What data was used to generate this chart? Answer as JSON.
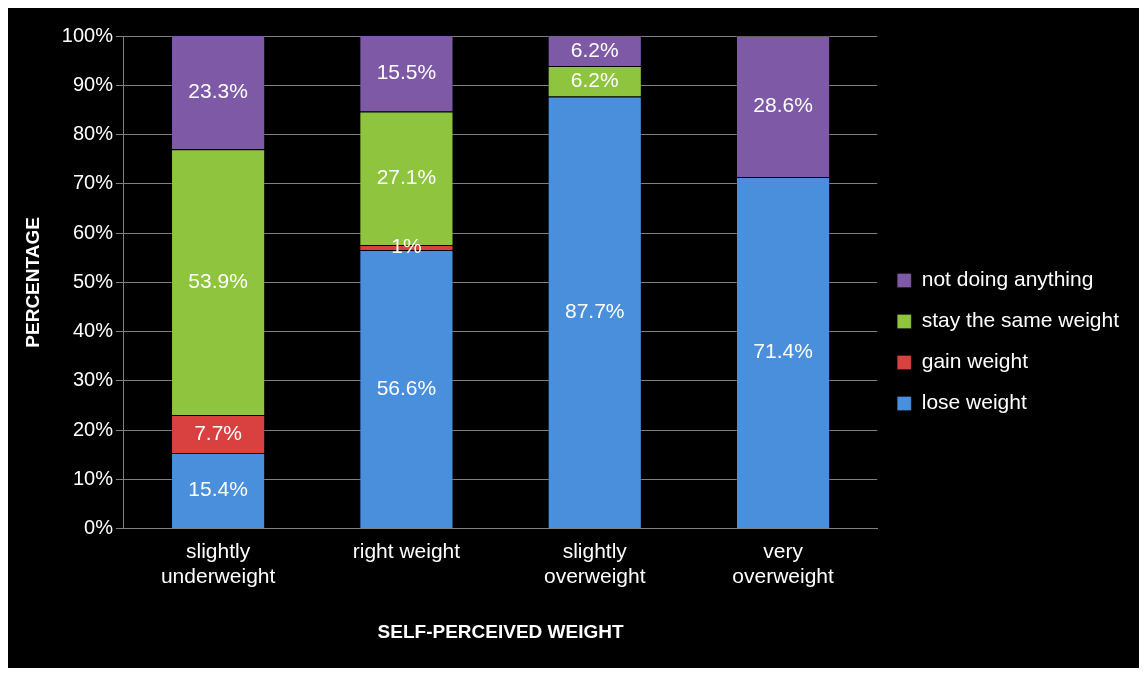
{
  "chart_data": {
    "type": "bar",
    "stacked": true,
    "xlabel": "SELF-PERCEIVED WEIGHT",
    "ylabel": "PERCENTAGE",
    "categories": [
      "slightly underweight",
      "right weight",
      "slightly overweight",
      "very overweight"
    ],
    "series": [
      {
        "name": "lose weight",
        "color": "#4a8fdc",
        "values": [
          15.4,
          56.6,
          87.7,
          71.4
        ],
        "value_labels": [
          "15.4%",
          "56.6%",
          "87.7%",
          "71.4%"
        ]
      },
      {
        "name": "gain weight",
        "color": "#d94040",
        "values": [
          7.7,
          1,
          null,
          null
        ],
        "value_labels": [
          "7.7%",
          "1%",
          null,
          null
        ]
      },
      {
        "name": "stay the same weight",
        "color": "#8fc43e",
        "values": [
          53.9,
          27.1,
          6.2,
          null
        ],
        "value_labels": [
          "53.9%",
          "27.1%",
          "6.2%",
          null
        ]
      },
      {
        "name": "not doing anything",
        "color": "#7e5aa6",
        "values": [
          23.3,
          15.5,
          6.2,
          28.6
        ],
        "value_labels": [
          "23.3%",
          "15.5%",
          "6.2%",
          "28.6%"
        ]
      }
    ],
    "ylim": [
      0,
      100
    ],
    "yticks": [
      {
        "value": 0,
        "label": "0%"
      },
      {
        "value": 10,
        "label": "10%"
      },
      {
        "value": 20,
        "label": "20%"
      },
      {
        "value": 30,
        "label": "30%"
      },
      {
        "value": 40,
        "label": "40%"
      },
      {
        "value": 50,
        "label": "50%"
      },
      {
        "value": 60,
        "label": "60%"
      },
      {
        "value": 70,
        "label": "70%"
      },
      {
        "value": 80,
        "label": "80%"
      },
      {
        "value": 90,
        "label": "90%"
      },
      {
        "value": 100,
        "label": "100%"
      }
    ],
    "grid": "y",
    "legend": "right"
  }
}
